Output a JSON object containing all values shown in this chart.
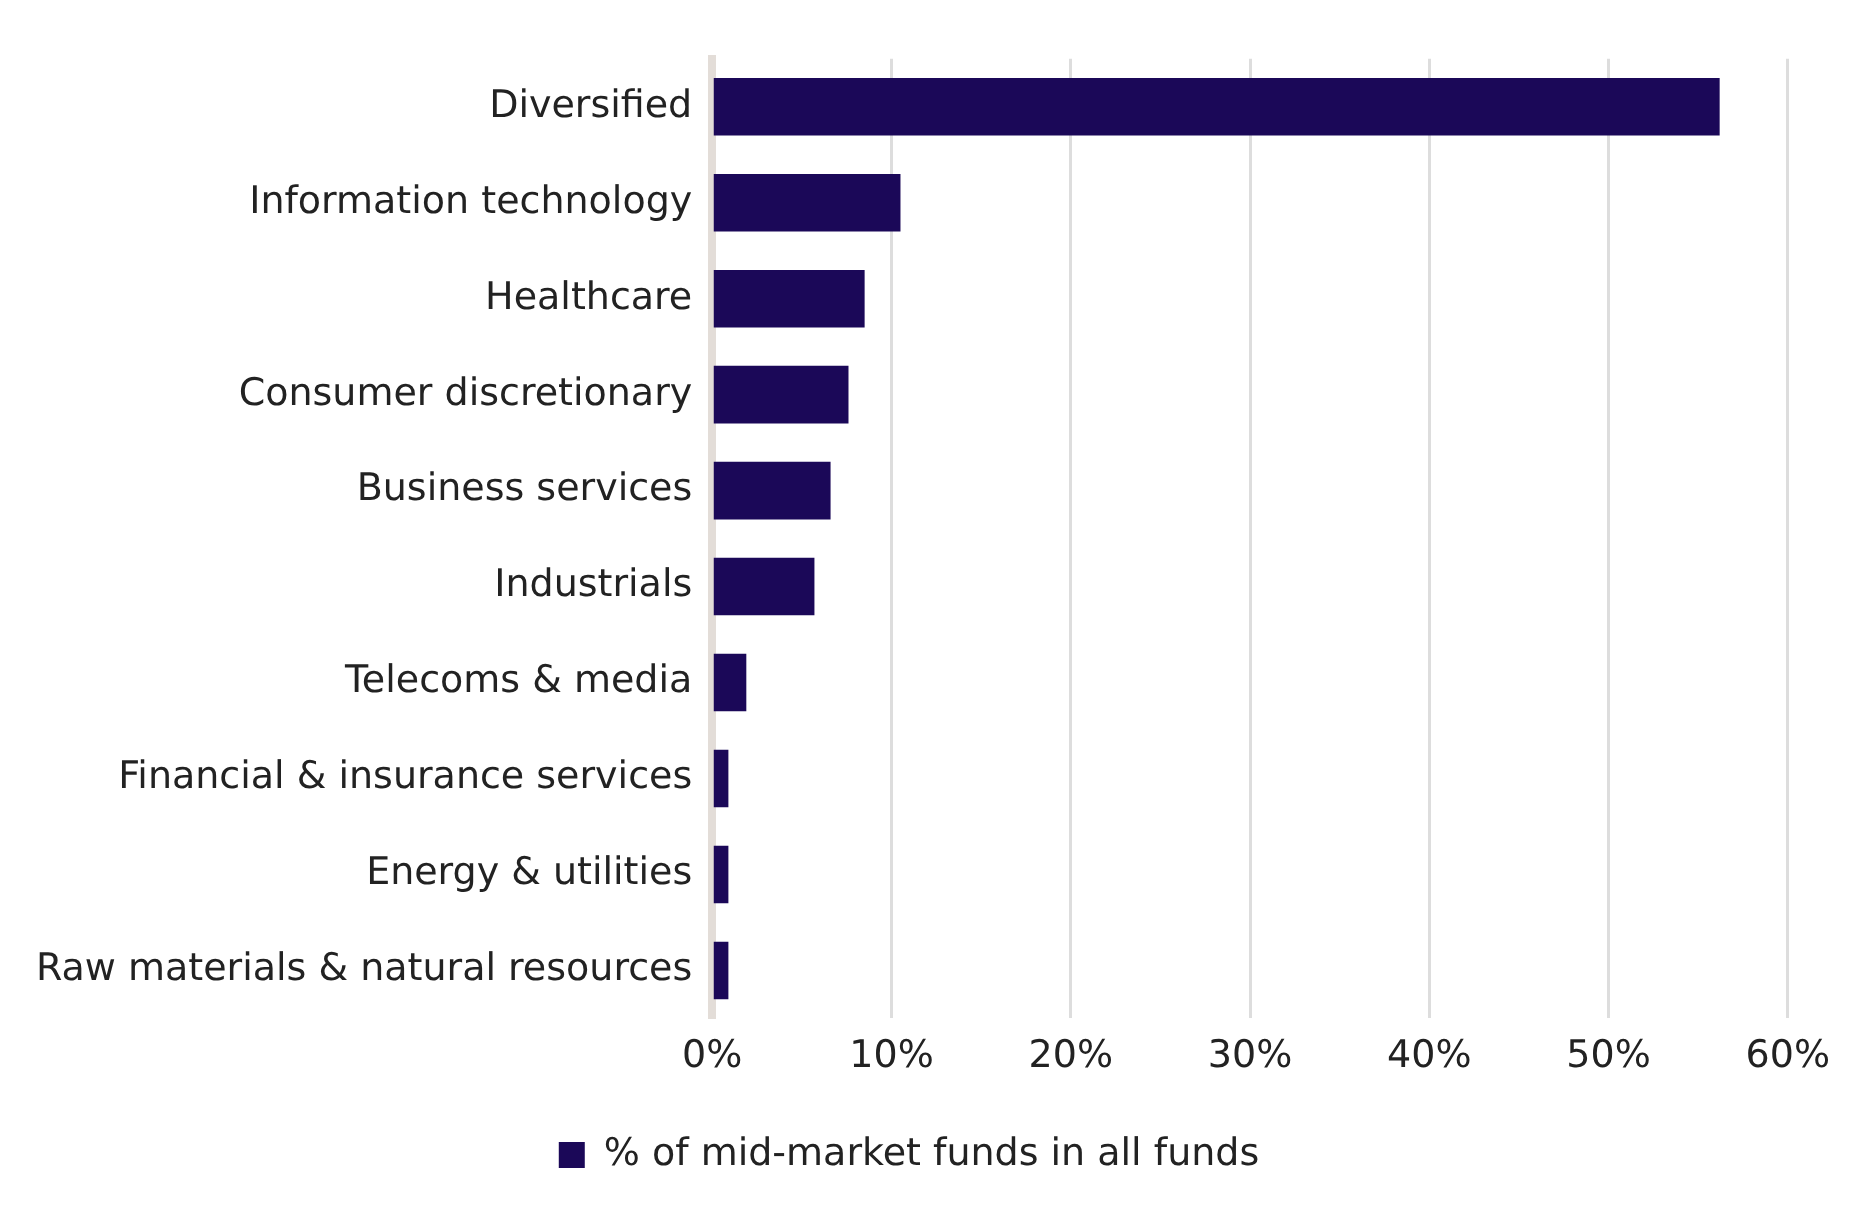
{
  "chart_data": {
    "type": "bar",
    "orientation": "horizontal",
    "categories": [
      "Diversified",
      "Information technology",
      "Healthcare",
      "Consumer discretionary",
      "Business services",
      "Industrials",
      "Telecoms & media",
      "Financial & insurance services",
      "Energy & utilities",
      "Raw materials & natural resources"
    ],
    "series": [
      {
        "name": "% of mid-market funds in all funds",
        "color": "#1b0858",
        "values": [
          56.2,
          10.5,
          8.5,
          7.6,
          6.6,
          5.7,
          1.9,
          0.9,
          0.9,
          0.9
        ]
      }
    ],
    "xlim": [
      0,
      60
    ],
    "xticks": [
      {
        "value": 0,
        "label": "0%"
      },
      {
        "value": 10,
        "label": "10%"
      },
      {
        "value": 20,
        "label": "20%"
      },
      {
        "value": 30,
        "label": "30%"
      },
      {
        "value": 40,
        "label": "40%"
      },
      {
        "value": 50,
        "label": "50%"
      },
      {
        "value": 60,
        "label": "60%"
      }
    ],
    "grid": "x",
    "legend": "bottom"
  }
}
